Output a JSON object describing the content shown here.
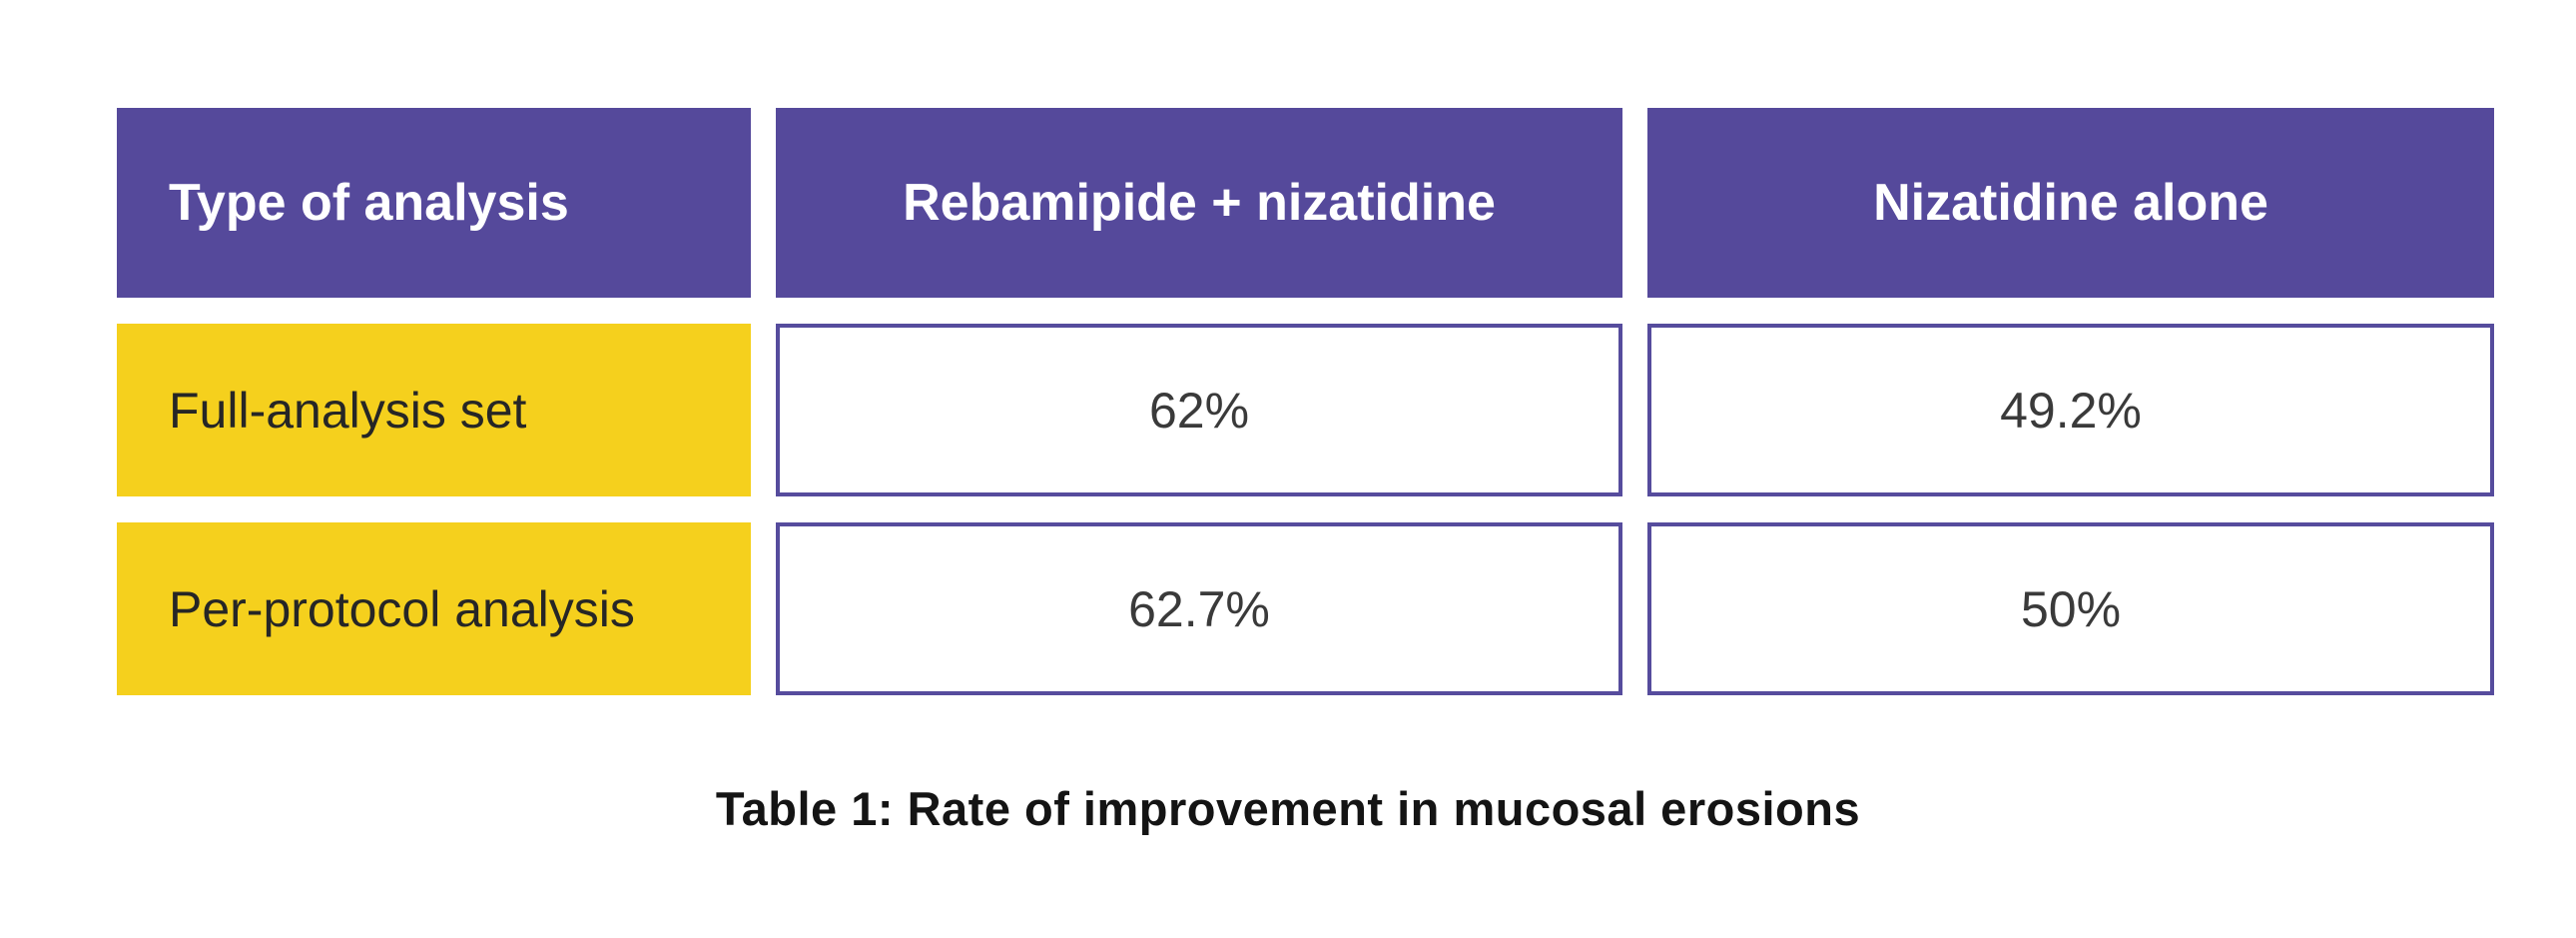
{
  "theme": {
    "page_bg": "#ffffff",
    "header_bg": "#55499b",
    "header_text": "#ffffff",
    "label_bg": "#f5d01d",
    "label_text": "#262626",
    "cell_bg": "#ffffff",
    "cell_border": "#564c9d",
    "value_text": "#3a3a3a",
    "caption_text": "#141414"
  },
  "table": {
    "columns": [
      "Type of analysis",
      "Rebamipide + nizatidine",
      "Nizatidine alone"
    ],
    "rows": [
      {
        "label": "Full-analysis set",
        "values": [
          "62%",
          "49.2%"
        ]
      },
      {
        "label": "Per-protocol analysis",
        "values": [
          "62.7%",
          "50%"
        ]
      }
    ]
  },
  "caption": "Table 1: Rate of improvement in mucosal erosions",
  "chart_data": {
    "type": "table",
    "title": "Table 1: Rate of improvement in mucosal erosions",
    "columns": [
      "Type of analysis",
      "Rebamipide + nizatidine",
      "Nizatidine alone"
    ],
    "categories": [
      "Full-analysis set",
      "Per-protocol analysis"
    ],
    "series": [
      {
        "name": "Rebamipide + nizatidine",
        "values": [
          62,
          62.7
        ]
      },
      {
        "name": "Nizatidine alone",
        "values": [
          49.2,
          50
        ]
      }
    ],
    "rows": [
      [
        "Full-analysis set",
        "62%",
        "49.2%"
      ],
      [
        "Per-protocol analysis",
        "62.7%",
        "50%"
      ]
    ],
    "unit": "%",
    "layout_hints": {
      "header_fill": "#55499b",
      "row_label_fill": "#f5d01d",
      "value_cell_border": "#564c9d",
      "grid": "separated-cells",
      "caption_position": "bottom-center"
    }
  }
}
